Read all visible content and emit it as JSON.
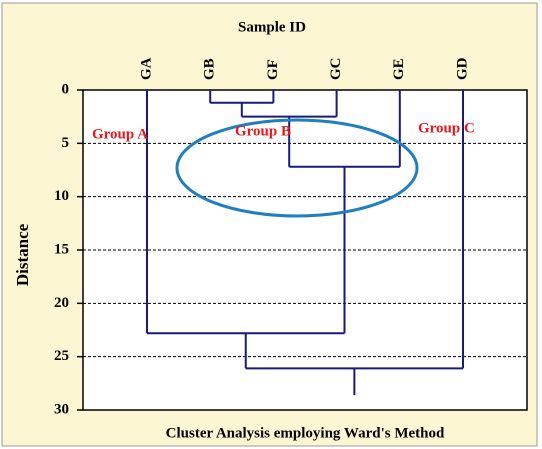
{
  "chart_data": {
    "type": "dendrogram",
    "title": "Sample ID",
    "xlabel": "Cluster Analysis employing Ward's Method",
    "ylabel": "Distance",
    "ylim": [
      0,
      30
    ],
    "y_inverted": true,
    "yticks": [
      0,
      5,
      10,
      15,
      20,
      25,
      30
    ],
    "grid": true,
    "color": "#1a1a7a",
    "tree": {
      "height": 26.1,
      "children": [
        {
          "height": 22.8,
          "children": [
            "GA",
            {
              "height": 7.2,
              "children": [
                {
                  "height": 2.5,
                  "children": [
                    {
                      "height": 1.2,
                      "children": [
                        "GB",
                        "GF"
                      ]
                    },
                    "GC"
                  ]
                },
                "GE"
              ]
            }
          ]
        },
        "GD"
      ]
    },
    "trunk_end": 28.6,
    "annotations": [
      "Group A",
      "Group B",
      "Group C"
    ]
  }
}
